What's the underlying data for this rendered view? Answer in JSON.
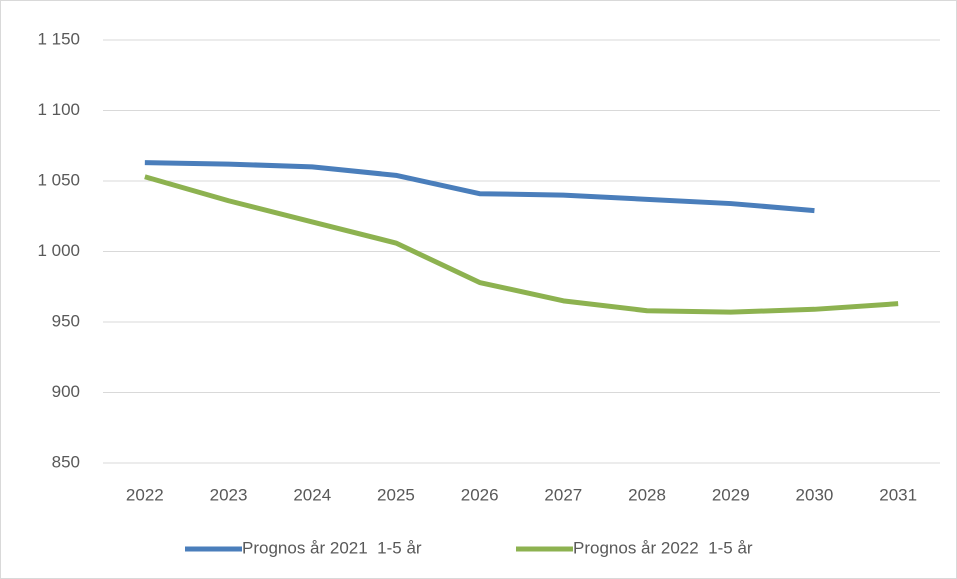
{
  "chart_data": {
    "type": "line",
    "categories": [
      "2022",
      "2023",
      "2024",
      "2025",
      "2026",
      "2027",
      "2028",
      "2029",
      "2030",
      "2031"
    ],
    "series": [
      {
        "name": "Prognos år 2021  1-5 år",
        "color": "#4a7ebb",
        "values": [
          1063,
          1062,
          1060,
          1054,
          1041,
          1040,
          1037,
          1034,
          1029,
          null
        ]
      },
      {
        "name": "Prognos år 2022  1-5 år",
        "color": "#8db250",
        "values": [
          1053,
          1036,
          1021,
          1006,
          978,
          965,
          958,
          957,
          959,
          963
        ]
      }
    ],
    "ylim": [
      850,
      1150
    ],
    "yticks": [
      {
        "value": 850,
        "label": "850"
      },
      {
        "value": 900,
        "label": "900"
      },
      {
        "value": 950,
        "label": "950"
      },
      {
        "value": 1000,
        "label": "1 000"
      },
      {
        "value": 1050,
        "label": "1 050"
      },
      {
        "value": 1100,
        "label": "1 100"
      },
      {
        "value": 1150,
        "label": "1 150"
      }
    ],
    "grid": true,
    "legend": "bottom"
  }
}
